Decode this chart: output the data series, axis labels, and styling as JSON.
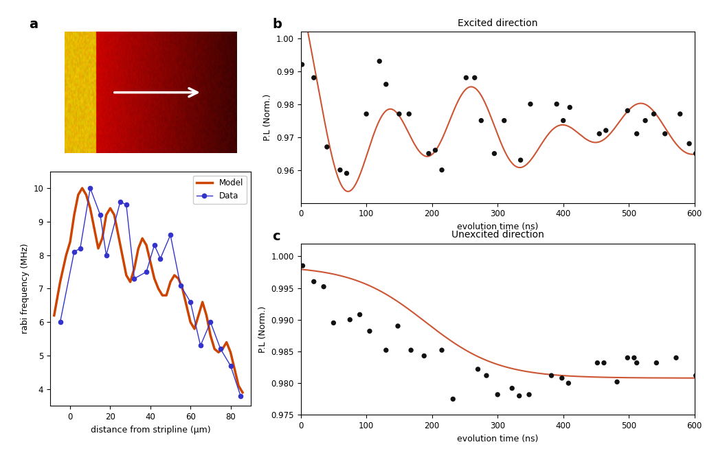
{
  "panel_a": {
    "data_x": [
      -5,
      2,
      5,
      10,
      15,
      18,
      25,
      28,
      32,
      38,
      42,
      45,
      50,
      55,
      60,
      65,
      70,
      75,
      80,
      85
    ],
    "data_y": [
      6.0,
      8.1,
      8.2,
      10.0,
      9.2,
      8.0,
      9.6,
      9.5,
      7.3,
      7.5,
      8.3,
      7.9,
      8.6,
      7.1,
      6.6,
      5.3,
      6.0,
      5.2,
      4.7,
      3.8
    ],
    "model_x": [
      -8,
      -5,
      -2,
      0,
      2,
      4,
      6,
      8,
      10,
      12,
      14,
      16,
      18,
      20,
      22,
      24,
      26,
      28,
      30,
      32,
      34,
      36,
      38,
      40,
      42,
      44,
      46,
      48,
      50,
      52,
      54,
      56,
      58,
      60,
      62,
      64,
      66,
      68,
      70,
      72,
      74,
      76,
      78,
      80,
      82,
      84,
      86
    ],
    "model_y": [
      6.2,
      7.2,
      8.0,
      8.4,
      9.2,
      9.8,
      10.0,
      9.8,
      9.4,
      8.8,
      8.2,
      8.5,
      9.2,
      9.4,
      9.2,
      8.6,
      8.0,
      7.4,
      7.2,
      7.6,
      8.2,
      8.5,
      8.3,
      7.8,
      7.3,
      7.0,
      6.8,
      6.8,
      7.2,
      7.4,
      7.3,
      7.0,
      6.5,
      6.0,
      5.8,
      6.2,
      6.6,
      6.2,
      5.6,
      5.2,
      5.1,
      5.2,
      5.4,
      5.1,
      4.6,
      4.1,
      3.9
    ],
    "xlabel": "distance from stripline (μm)",
    "ylabel": "rabi frequency (MHz)",
    "xlim": [
      -10,
      90
    ],
    "ylim": [
      3.5,
      10.5
    ],
    "yticks": [
      4,
      5,
      6,
      7,
      8,
      9,
      10
    ],
    "xticks": [
      0,
      20,
      40,
      60,
      80
    ],
    "data_color": "#3333CC",
    "model_color": "#CC4400",
    "legend_data": "Data",
    "legend_model": "Model"
  },
  "panel_b": {
    "data_x": [
      2,
      20,
      40,
      60,
      70,
      100,
      120,
      130,
      150,
      165,
      195,
      205,
      215,
      252,
      265,
      275,
      295,
      310,
      335,
      350,
      390,
      400,
      410,
      455,
      465,
      498,
      512,
      525,
      538,
      555,
      578,
      592,
      602
    ],
    "data_y": [
      0.992,
      0.988,
      0.967,
      0.96,
      0.959,
      0.977,
      0.993,
      0.986,
      0.977,
      0.977,
      0.965,
      0.966,
      0.96,
      0.988,
      0.988,
      0.975,
      0.965,
      0.975,
      0.963,
      0.98,
      0.98,
      0.975,
      0.979,
      0.971,
      0.972,
      0.978,
      0.971,
      0.975,
      0.977,
      0.971,
      0.977,
      0.968,
      0.965
    ],
    "title": "Excited direction",
    "xlabel": "evolution time (ns)",
    "ylabel": "P.L (Norm.)",
    "xlim": [
      0,
      600
    ],
    "ylim": [
      0.95,
      1.005
    ],
    "yticks": [
      0.96,
      0.97,
      0.98,
      0.99,
      1.0
    ],
    "xticks": [
      0,
      100,
      200,
      300,
      400,
      500,
      600
    ]
  },
  "panel_c": {
    "data_x": [
      3,
      20,
      35,
      50,
      75,
      90,
      105,
      130,
      148,
      168,
      188,
      215,
      232,
      270,
      283,
      300,
      322,
      333,
      348,
      382,
      398,
      408,
      452,
      462,
      482,
      498,
      508,
      512,
      542,
      572,
      602
    ],
    "data_y": [
      0.9985,
      0.996,
      0.9952,
      0.9895,
      0.99,
      0.9908,
      0.9882,
      0.9852,
      0.989,
      0.9852,
      0.9843,
      0.9852,
      0.9775,
      0.9822,
      0.9812,
      0.9782,
      0.9792,
      0.978,
      0.9782,
      0.9812,
      0.9808,
      0.98,
      0.9832,
      0.9832,
      0.9802,
      0.984,
      0.984,
      0.9832,
      0.9832,
      0.984,
      0.9812
    ],
    "title": "Unexcited direction",
    "xlabel": "evolution time (ns)",
    "ylabel": "P.L (Norm.)",
    "xlim": [
      0,
      600
    ],
    "ylim": [
      0.975,
      1.002
    ],
    "yticks": [
      0.975,
      0.98,
      0.985,
      0.99,
      0.995,
      1.0
    ],
    "xticks": [
      0,
      100,
      200,
      300,
      400,
      500,
      600
    ]
  },
  "model_color": "#CC5533",
  "data_dot_color": "#111111",
  "background_color": "#ffffff",
  "label_fontsize": 9,
  "title_fontsize": 10,
  "tick_fontsize": 8.5
}
